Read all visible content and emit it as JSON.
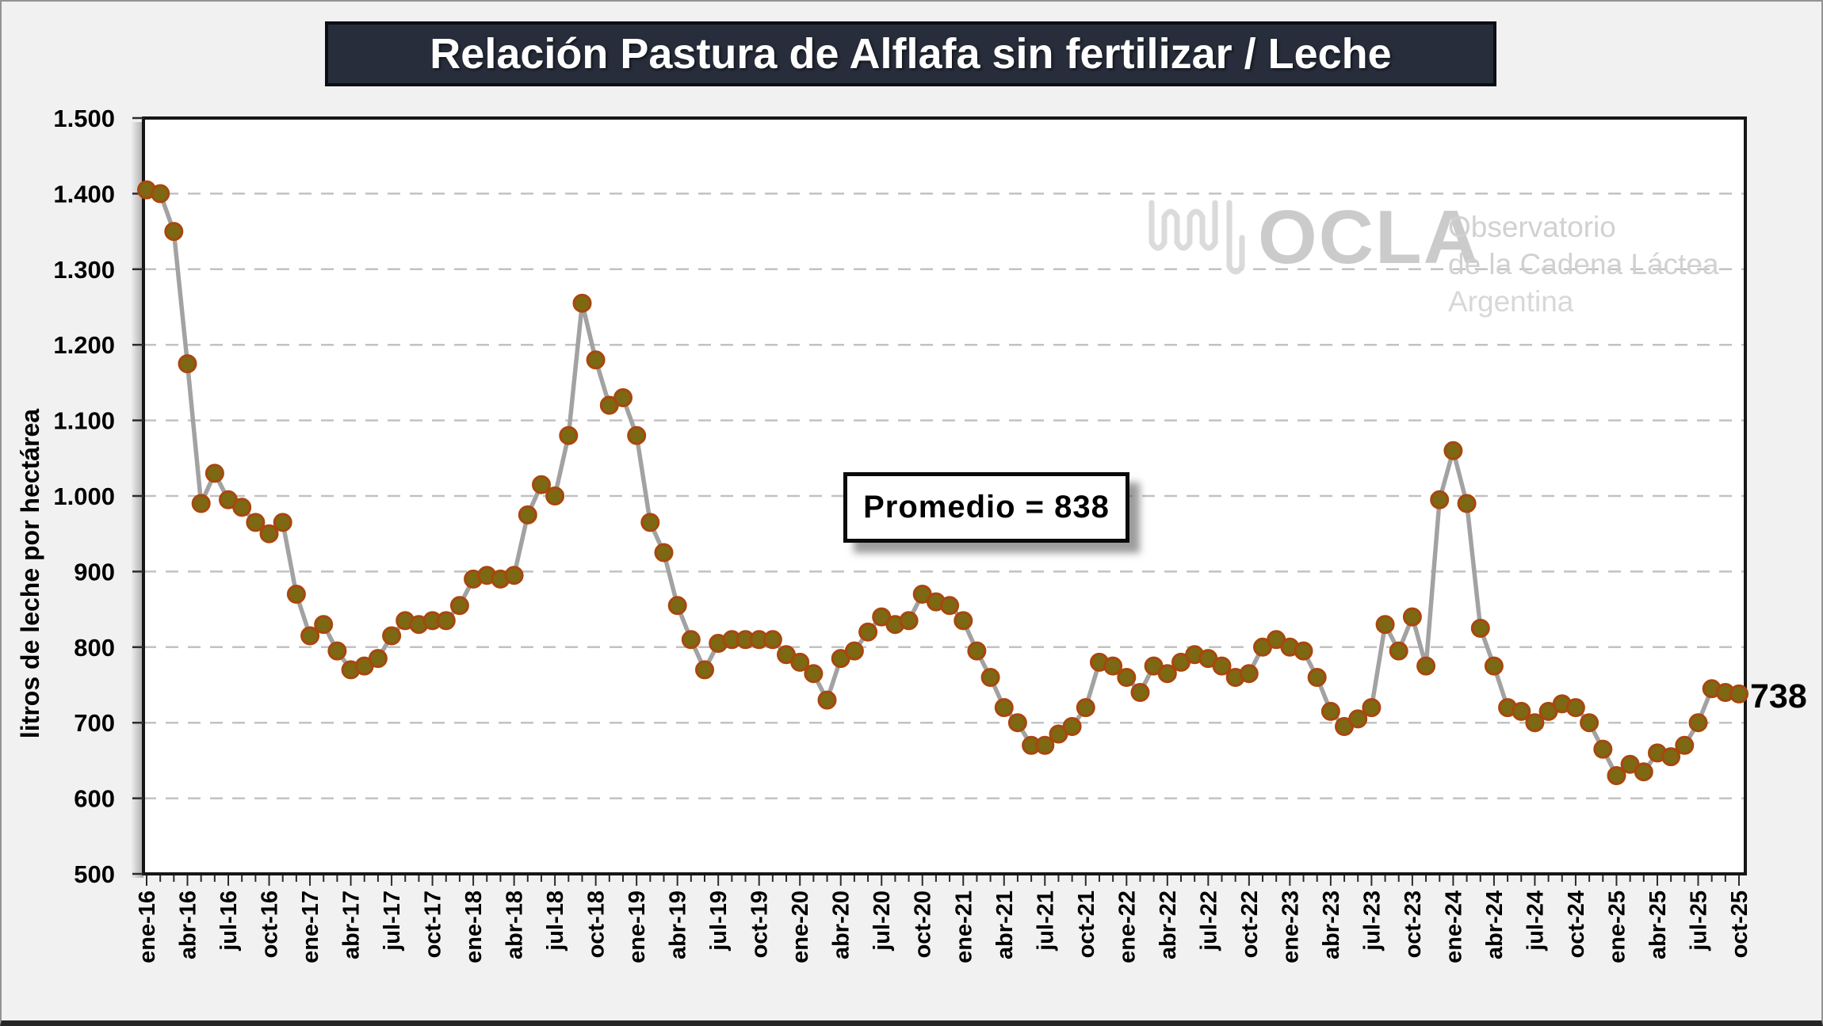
{
  "title": {
    "text": "Relación Pastura de Alflafa sin fertilizar / Leche"
  },
  "annotation": {
    "text": "Promedio = 838"
  },
  "end_label": "738",
  "watermark": {
    "logo_text": "OCLA",
    "line1": "Observatorio",
    "line2": "de la Cadena Láctea",
    "line3": "Argentina"
  },
  "chart_data": {
    "type": "line",
    "title": "Relación Pastura de Alflafa sin fertilizar / Leche",
    "xlabel": "",
    "ylabel": "litros de leche por hectárea",
    "ylim": [
      500,
      1500
    ],
    "ytick_step": 100,
    "tick_every": 3,
    "grid": "horizontal-dashed",
    "legend": "none",
    "average": 838,
    "last_value_label": "738",
    "line_color": "#a2a2a2",
    "marker_fill": "#7d6813",
    "marker_stroke": "#a8470e",
    "grid_color": "#c2c2c2",
    "categories": [
      "ene-16",
      "feb-16",
      "mar-16",
      "abr-16",
      "may-16",
      "jun-16",
      "jul-16",
      "ago-16",
      "sep-16",
      "oct-16",
      "nov-16",
      "dic-16",
      "ene-17",
      "feb-17",
      "mar-17",
      "abr-17",
      "may-17",
      "jun-17",
      "jul-17",
      "ago-17",
      "sep-17",
      "oct-17",
      "nov-17",
      "dic-17",
      "ene-18",
      "feb-18",
      "mar-18",
      "abr-18",
      "may-18",
      "jun-18",
      "jul-18",
      "ago-18",
      "sep-18",
      "oct-18",
      "nov-18",
      "dic-18",
      "ene-19",
      "feb-19",
      "mar-19",
      "abr-19",
      "may-19",
      "jun-19",
      "jul-19",
      "ago-19",
      "sep-19",
      "oct-19",
      "nov-19",
      "dic-19",
      "ene-20",
      "feb-20",
      "mar-20",
      "abr-20",
      "may-20",
      "jun-20",
      "jul-20",
      "ago-20",
      "sep-20",
      "oct-20",
      "nov-20",
      "dic-20",
      "ene-21",
      "feb-21",
      "mar-21",
      "abr-21",
      "may-21",
      "jun-21",
      "jul-21",
      "ago-21",
      "sep-21",
      "oct-21",
      "nov-21",
      "dic-21",
      "ene-22",
      "feb-22",
      "mar-22",
      "abr-22",
      "may-22",
      "jun-22",
      "jul-22",
      "ago-22",
      "sep-22",
      "oct-22",
      "nov-22",
      "dic-22",
      "ene-23",
      "feb-23",
      "mar-23",
      "abr-23",
      "may-23",
      "jun-23",
      "jul-23",
      "ago-23",
      "sep-23",
      "oct-23",
      "nov-23",
      "dic-23",
      "ene-24",
      "feb-24",
      "mar-24",
      "abr-24",
      "may-24",
      "jun-24",
      "jul-24",
      "ago-24",
      "sep-24",
      "oct-24",
      "nov-24",
      "dic-24",
      "ene-25",
      "feb-25",
      "mar-25",
      "abr-25",
      "may-25",
      "jun-25",
      "jul-25",
      "ago-25",
      "sep-25",
      "oct-25"
    ],
    "values": [
      1405,
      1400,
      1350,
      1175,
      990,
      1030,
      995,
      985,
      965,
      950,
      965,
      870,
      815,
      830,
      795,
      770,
      775,
      785,
      815,
      835,
      830,
      835,
      835,
      855,
      890,
      895,
      890,
      895,
      975,
      1015,
      1000,
      1080,
      1255,
      1180,
      1120,
      1130,
      1080,
      965,
      925,
      855,
      810,
      770,
      805,
      810,
      810,
      810,
      810,
      790,
      780,
      765,
      730,
      785,
      795,
      820,
      840,
      830,
      835,
      870,
      860,
      855,
      835,
      795,
      760,
      720,
      700,
      670,
      670,
      685,
      695,
      720,
      780,
      775,
      760,
      740,
      775,
      765,
      780,
      790,
      785,
      775,
      760,
      765,
      800,
      810,
      800,
      795,
      760,
      715,
      695,
      705,
      720,
      830,
      795,
      840,
      775,
      995,
      1060,
      990,
      825,
      775,
      720,
      715,
      700,
      715,
      725,
      720,
      700,
      665,
      630,
      645,
      635,
      660,
      655,
      670,
      700,
      745,
      740,
      738
    ]
  }
}
